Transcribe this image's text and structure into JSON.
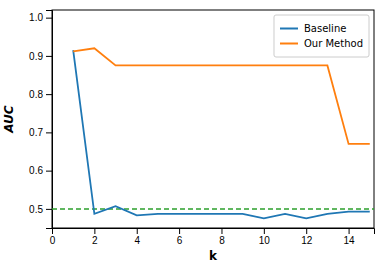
{
  "chart_data": {
    "type": "line",
    "x": [
      1,
      2,
      3,
      4,
      5,
      6,
      7,
      8,
      9,
      10,
      11,
      12,
      13,
      14,
      15
    ],
    "series": [
      {
        "name": "Baseline",
        "color": "#1f77b4",
        "values": [
          0.915,
          0.487,
          0.507,
          0.483,
          0.487,
          0.487,
          0.487,
          0.487,
          0.487,
          0.475,
          0.487,
          0.475,
          0.487,
          0.493,
          0.493
        ]
      },
      {
        "name": "Our Method",
        "color": "#ff7f0e",
        "values": [
          0.912,
          0.92,
          0.875,
          0.875,
          0.875,
          0.875,
          0.875,
          0.875,
          0.875,
          0.875,
          0.875,
          0.875,
          0.875,
          0.67,
          0.67
        ]
      }
    ],
    "reference_line": {
      "value": 0.5,
      "color": "#2ca02c",
      "line_style": "dashed"
    },
    "x_label": "k",
    "y_label": "AUC",
    "xlim": [
      0,
      15.2
    ],
    "ylim": [
      0.45,
      1.02
    ],
    "xticks": [
      0,
      2,
      4,
      6,
      8,
      10,
      12,
      14
    ],
    "yticks": [
      0.5,
      0.6,
      0.7,
      0.8,
      0.9,
      {
        "value": 1.0,
        "label": "1.0"
      }
    ],
    "legend": "upper right",
    "grid": false
  }
}
